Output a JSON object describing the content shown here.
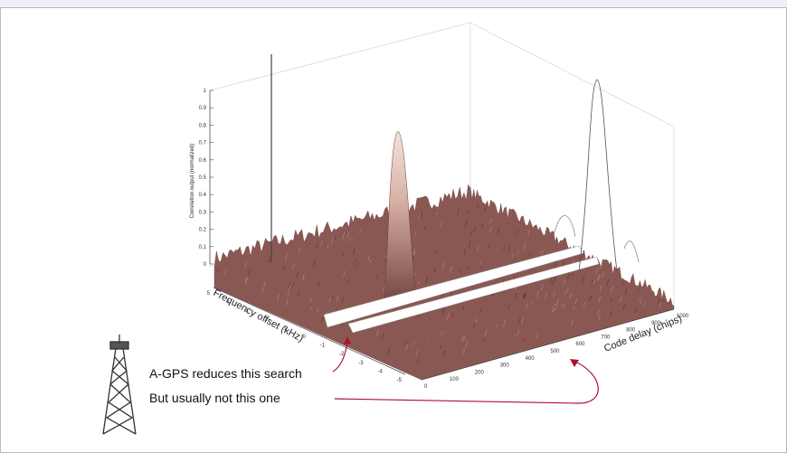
{
  "plot": {
    "z_label": "Correlation output (normalized)",
    "z_ticks": [
      "0",
      "0.1",
      "0.2",
      "0.3",
      "0.4",
      "0.5",
      "0.6",
      "0.7",
      "0.8",
      "0.9",
      "1"
    ],
    "y_label": "Frequency offset (kHz)",
    "y_ticks": [
      "5",
      "4",
      "3",
      "2",
      "1",
      "0",
      "-1",
      "-2",
      "-3",
      "-4",
      "-5"
    ],
    "x_label": "Code delay (chips)",
    "x_ticks": [
      "0",
      "100",
      "200",
      "300",
      "400",
      "500",
      "600",
      "700",
      "800",
      "900",
      "1000"
    ]
  },
  "annotations": [
    "A-GPS reduces this search",
    "But usually not this one"
  ]
}
